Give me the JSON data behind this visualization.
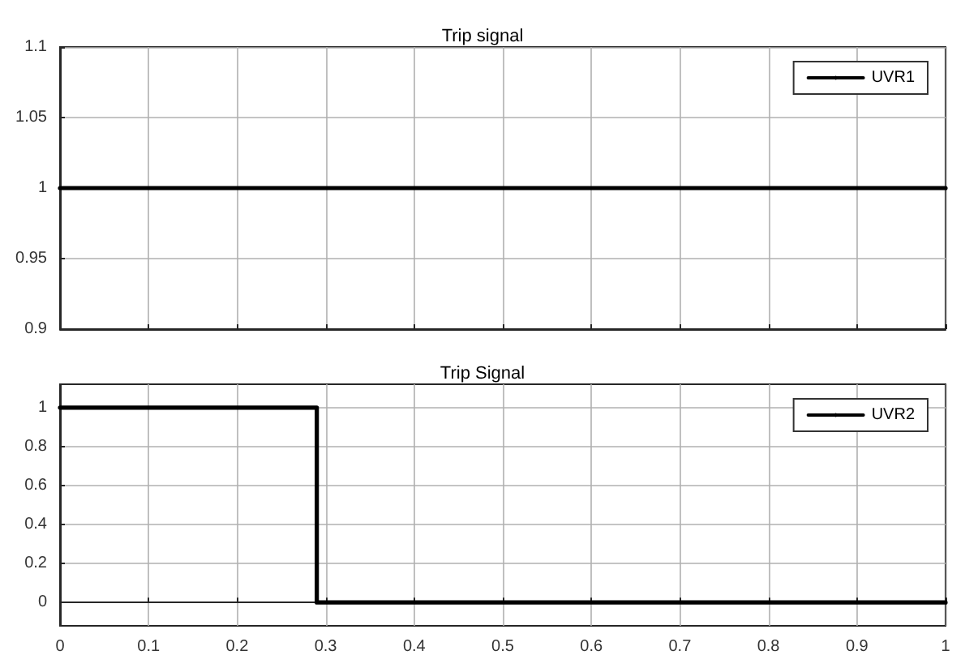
{
  "chart_data": [
    {
      "type": "line",
      "title": "Trip signal",
      "x": [
        0,
        1
      ],
      "series": [
        {
          "name": "UVR1",
          "color": "#000000",
          "values": [
            1,
            1
          ]
        }
      ],
      "xlim": [
        0,
        1
      ],
      "xticks": [
        0,
        0.1,
        0.2,
        0.3,
        0.4,
        0.5,
        0.6,
        0.7,
        0.8,
        0.9,
        1
      ],
      "ylim": [
        0.9,
        1.1
      ],
      "yticks": [
        0.9,
        0.95,
        1,
        1.05,
        1.1
      ],
      "grid": true,
      "legend": "top right",
      "tick_labels": "y",
      "marker": "none",
      "line_style": "solid"
    },
    {
      "type": "step",
      "title": "Trip Signal",
      "x": [
        0,
        0.29,
        1
      ],
      "series": [
        {
          "name": "UVR2",
          "color": "#000000",
          "values": [
            1,
            0,
            0
          ]
        }
      ],
      "xlim": [
        0,
        1
      ],
      "xticks": [
        0,
        0.1,
        0.2,
        0.3,
        0.4,
        0.5,
        0.6,
        0.7,
        0.8,
        0.9,
        1
      ],
      "ylim": [
        -0.12,
        1.12
      ],
      "yticks": [
        0,
        0.2,
        0.4,
        0.6,
        0.8,
        1
      ],
      "grid": true,
      "legend": "top right",
      "marker": "none",
      "line_style": "solid"
    }
  ]
}
